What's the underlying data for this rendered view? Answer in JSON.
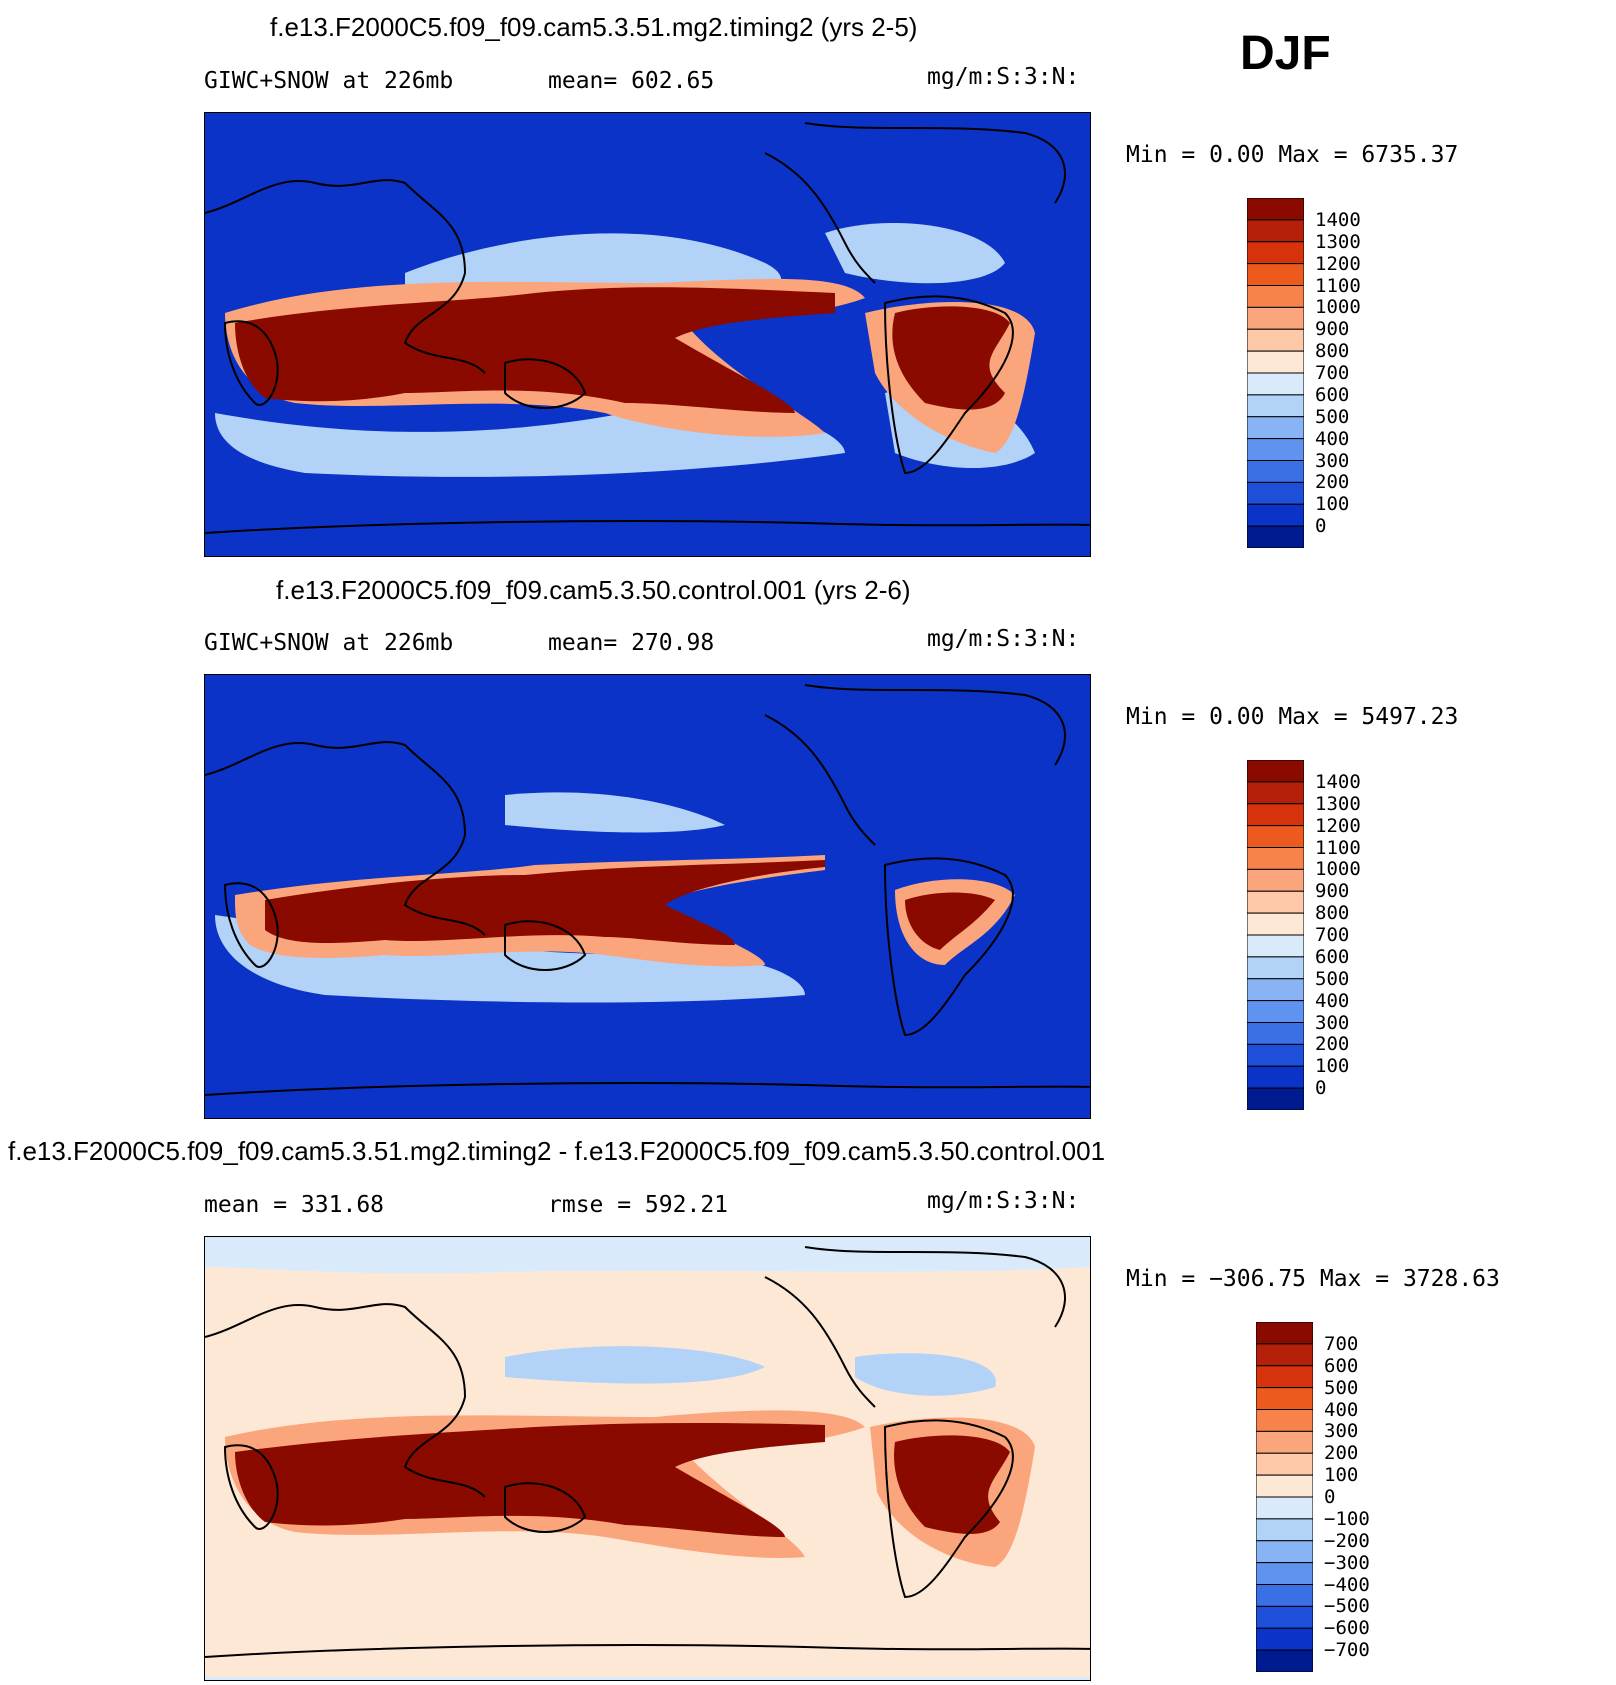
{
  "season": "DJF",
  "panels": [
    {
      "title": "f.e13.F2000C5.f09_f09.cam5.3.51.mg2.timing2 (yrs 2-5)",
      "left_label": "GIWC+SNOW at 226mb",
      "mid_label": "mean= 602.65",
      "units": "mg/m:S:3:N:",
      "minmax": "Min =    0.00 Max = 6735.37",
      "colorbar": {
        "labels": [
          "1400",
          "1300",
          "1200",
          "1100",
          "1000",
          "900",
          "800",
          "700",
          "600",
          "500",
          "400",
          "300",
          "200",
          "100",
          "0"
        ],
        "colors": [
          "#8b0a00",
          "#b5200a",
          "#d6330d",
          "#ec5a1e",
          "#f7834a",
          "#fba57c",
          "#fdc9a8",
          "#fde8d6",
          "#d9ebfa",
          "#b2d2f8",
          "#88b4f5",
          "#5f93ef",
          "#3b6fe6",
          "#1e4fd9",
          "#0b33c7",
          "#001a8f"
        ]
      },
      "background": "#0b33c7"
    },
    {
      "title": "f.e13.F2000C5.f09_f09.cam5.3.50.control.001 (yrs 2-6)",
      "left_label": "GIWC+SNOW at 226mb",
      "mid_label": "mean= 270.98",
      "units": "mg/m:S:3:N:",
      "minmax": "Min =    0.00 Max = 5497.23",
      "colorbar": {
        "labels": [
          "1400",
          "1300",
          "1200",
          "1100",
          "1000",
          "900",
          "800",
          "700",
          "600",
          "500",
          "400",
          "300",
          "200",
          "100",
          "0"
        ],
        "colors": [
          "#8b0a00",
          "#b5200a",
          "#d6330d",
          "#ec5a1e",
          "#f7834a",
          "#fba57c",
          "#fdc9a8",
          "#fde8d6",
          "#d9ebfa",
          "#b2d2f8",
          "#88b4f5",
          "#5f93ef",
          "#3b6fe6",
          "#1e4fd9",
          "#0b33c7",
          "#001a8f"
        ]
      },
      "background": "#0b33c7"
    },
    {
      "title": "f.e13.F2000C5.f09_f09.cam5.3.51.mg2.timing2 - f.e13.F2000C5.f09_f09.cam5.3.50.control.001",
      "left_label": "mean = 331.68",
      "mid_label": "rmse = 592.21",
      "units": "mg/m:S:3:N:",
      "minmax": "Min = −306.75 Max = 3728.63",
      "colorbar": {
        "labels": [
          "700",
          "600",
          "500",
          "400",
          "300",
          "200",
          "100",
          "0",
          "−100",
          "−200",
          "−300",
          "−400",
          "−500",
          "−600",
          "−700"
        ],
        "colors": [
          "#8b0a00",
          "#b5200a",
          "#d6330d",
          "#ec5a1e",
          "#f7834a",
          "#fba57c",
          "#fdc9a8",
          "#fde8d6",
          "#d9ebfa",
          "#b2d2f8",
          "#88b4f5",
          "#5f93ef",
          "#3b6fe6",
          "#1e4fd9",
          "#0b33c7",
          "#001a8f"
        ]
      },
      "background": "#fde8d6"
    }
  ],
  "chart_data": [
    {
      "type": "heatmap",
      "title": "f.e13.F2000C5.f09_f09.cam5.3.51.mg2.timing2 (yrs 2-5)",
      "variable": "GIWC+SNOW at 226mb",
      "units": "mg/m:S:3:N:",
      "mean": 602.65,
      "min": 0.0,
      "max": 6735.37,
      "contour_levels": [
        0,
        100,
        200,
        300,
        400,
        500,
        600,
        700,
        800,
        900,
        1000,
        1100,
        1200,
        1300,
        1400
      ]
    },
    {
      "type": "heatmap",
      "title": "f.e13.F2000C5.f09_f09.cam5.3.50.control.001 (yrs 2-6)",
      "variable": "GIWC+SNOW at 226mb",
      "units": "mg/m:S:3:N:",
      "mean": 270.98,
      "min": 0.0,
      "max": 5497.23,
      "contour_levels": [
        0,
        100,
        200,
        300,
        400,
        500,
        600,
        700,
        800,
        900,
        1000,
        1100,
        1200,
        1300,
        1400
      ]
    },
    {
      "type": "heatmap",
      "title": "f.e13.F2000C5.f09_f09.cam5.3.51.mg2.timing2 - f.e13.F2000C5.f09_f09.cam5.3.50.control.001",
      "units": "mg/m:S:3:N:",
      "mean": 331.68,
      "rmse": 592.21,
      "min": -306.75,
      "max": 3728.63,
      "contour_levels": [
        -700,
        -600,
        -500,
        -400,
        -300,
        -200,
        -100,
        0,
        100,
        200,
        300,
        400,
        500,
        600,
        700
      ]
    }
  ]
}
